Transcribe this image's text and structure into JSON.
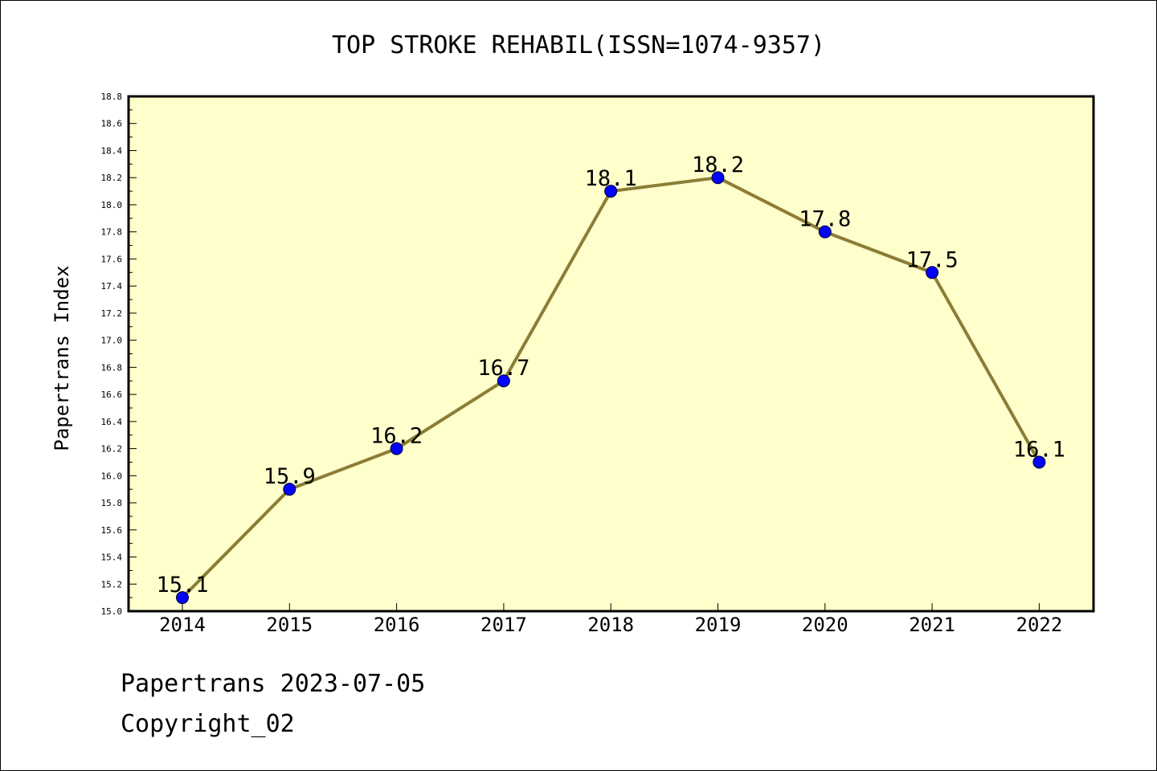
{
  "chart_data": {
    "type": "line",
    "title": "TOP STROKE REHABIL(ISSN=1074-9357)",
    "xlabel": "",
    "ylabel": "Papertrans Index",
    "x": [
      "2014",
      "2015",
      "2016",
      "2017",
      "2018",
      "2019",
      "2020",
      "2021",
      "2022"
    ],
    "values": [
      15.1,
      15.9,
      16.2,
      16.7,
      18.1,
      18.2,
      17.8,
      17.5,
      16.1
    ],
    "data_labels": [
      "15.1",
      "15.9",
      "16.2",
      "16.7",
      "18.1",
      "18.2",
      "17.8",
      "17.5",
      "16.1"
    ],
    "ylim": [
      15.0,
      18.8
    ],
    "yticks": [
      "15.0",
      "15.2",
      "15.4",
      "15.6",
      "15.8",
      "16.0",
      "16.2",
      "16.4",
      "16.6",
      "16.8",
      "17.0",
      "17.2",
      "17.4",
      "17.6",
      "17.8",
      "18.0",
      "18.2",
      "18.4",
      "18.6",
      "18.8"
    ],
    "grid": false,
    "legend": "none",
    "colors": {
      "plot_background": "#ffffcc",
      "line": "#8b7d35",
      "marker": "#0000ff"
    }
  },
  "footer": {
    "line1": "Papertrans 2023-07-05",
    "line2": "Copyright_02"
  }
}
